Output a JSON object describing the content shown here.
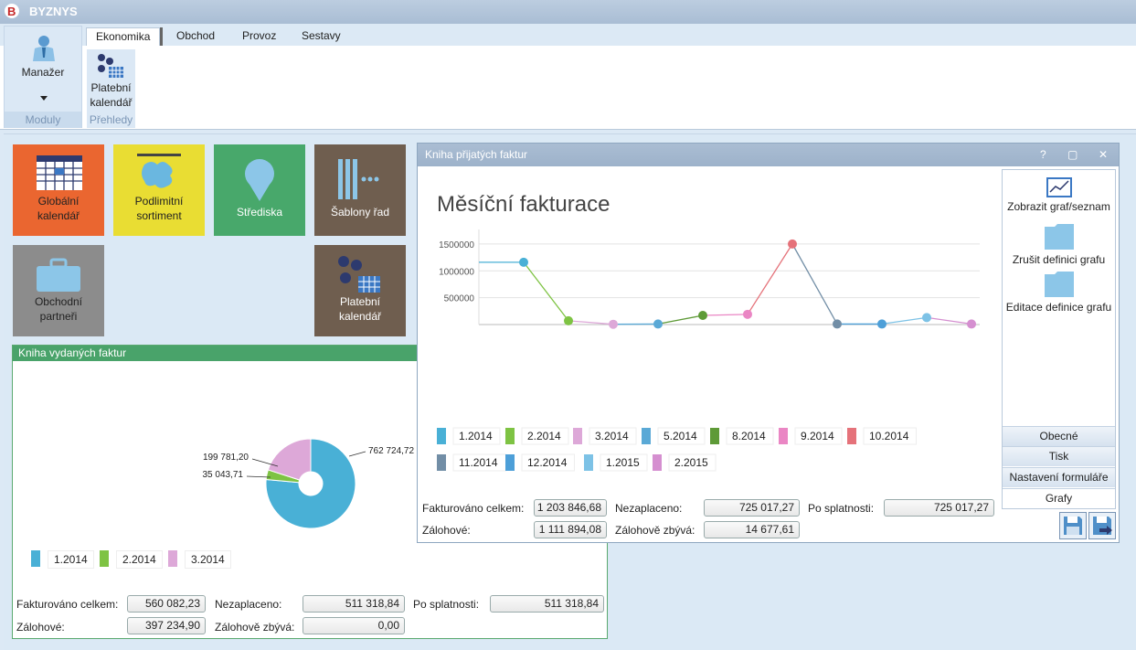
{
  "app": {
    "title": "BYZNYS"
  },
  "ribbon": {
    "tabs": [
      "Ekonomika",
      "Obchod",
      "Provoz",
      "Sestavy"
    ],
    "manager_label": "Manažer",
    "group_moduly": "Moduly",
    "platebni_label_1": "Platební",
    "platebni_label_2": "kalendář",
    "group_prehledy": "Přehledy"
  },
  "tiles": {
    "globalni": {
      "l1": "Globální",
      "l2": "kalendář",
      "color": "#ea6630"
    },
    "podlimitni": {
      "l1": "Podlimitní",
      "l2": "sortiment",
      "color": "#e9dd33"
    },
    "strediska": {
      "l1": "Střediska",
      "color": "#48a86b"
    },
    "sablony": {
      "l1": "Šablony řad",
      "color": "#6f5e4f"
    },
    "obchodni": {
      "l1": "Obchodní",
      "l2": "partneři",
      "color": "#8c8c8c"
    },
    "platebni": {
      "l1": "Platební",
      "l2": "kalendář",
      "color": "#6f5e4f"
    }
  },
  "vydane": {
    "title": "Kniha vydaných faktur",
    "pie": {
      "labels": [
        "762 724,72",
        "199 781,20",
        "35 043,71"
      ]
    },
    "legend": [
      "1.2014",
      "2.2014",
      "3.2014"
    ],
    "fields": {
      "fakturovano_label": "Fakturováno celkem:",
      "fakturovano": "560 082,23",
      "nezaplaceno_label": "Nezaplaceno:",
      "nezaplaceno": "511 318,84",
      "posplatnosti_label": "Po splatnosti:",
      "posplatnosti": "511 318,84",
      "zalohove_label": "Zálohové:",
      "zalohove": "397 234,90",
      "zbyva_label": "Zálohově zbývá:",
      "zbyva": "0,00"
    }
  },
  "prijate": {
    "title": "Kniha přijatých faktur",
    "win_help": "?",
    "win_max": "▢",
    "win_close": "✕",
    "legend": [
      "1.2014",
      "2.2014",
      "3.2014",
      "5.2014",
      "8.2014",
      "9.2014",
      "10.2014",
      "11.2014",
      "12.2014",
      "1.2015",
      "2.2015"
    ],
    "fields": {
      "fakturovano_label": "Fakturováno celkem:",
      "fakturovano": "1 203 846,68",
      "nezaplaceno_label": "Nezaplaceno:",
      "nezaplaceno": "725 017,27",
      "posplatnosti_label": "Po splatnosti:",
      "posplatnosti": "725 017,27",
      "zalohove_label": "Zálohové:",
      "zalohove": "1 111 894,08",
      "zbyva_label": "Zálohově zbývá:",
      "zbyva": "14 677,61"
    },
    "side": {
      "zobrazit": "Zobrazit graf/seznam",
      "zrusit": "Zrušit definici grafu",
      "editace": "Editace definice grafu",
      "tabs": [
        "Obecné",
        "Tisk",
        "Nastavení formuláře",
        "Grafy"
      ]
    }
  },
  "chart_data": [
    {
      "type": "line",
      "title": "Měsíční fakturace",
      "categories": [
        "1.2014",
        "2.2014",
        "3.2014",
        "5.2014",
        "8.2014",
        "9.2014",
        "10.2014",
        "11.2014",
        "12.2014",
        "1.2015",
        "2.2015"
      ],
      "values": [
        1160000,
        70000,
        5000,
        10000,
        170000,
        190000,
        1500000,
        10000,
        10000,
        130000,
        10000
      ],
      "colors": [
        "#49b0d6",
        "#7ec343",
        "#dda8d8",
        "#5aa9d6",
        "#5e9a37",
        "#ea86c4",
        "#e5727a",
        "#728ea6",
        "#4d9fd8",
        "#7dc2e6",
        "#d58fd0"
      ],
      "yticks": [
        500000,
        1000000,
        1500000
      ],
      "ytick_labels": [
        "500000",
        "1000000",
        "1500000"
      ],
      "ylim": [
        0,
        1600000
      ]
    },
    {
      "type": "pie",
      "categories": [
        "1.2014",
        "2.2014",
        "3.2014"
      ],
      "values": [
        762724.72,
        35043.71,
        199781.2
      ],
      "colors": [
        "#49b0d6",
        "#7ec343",
        "#dda8d8"
      ]
    }
  ]
}
